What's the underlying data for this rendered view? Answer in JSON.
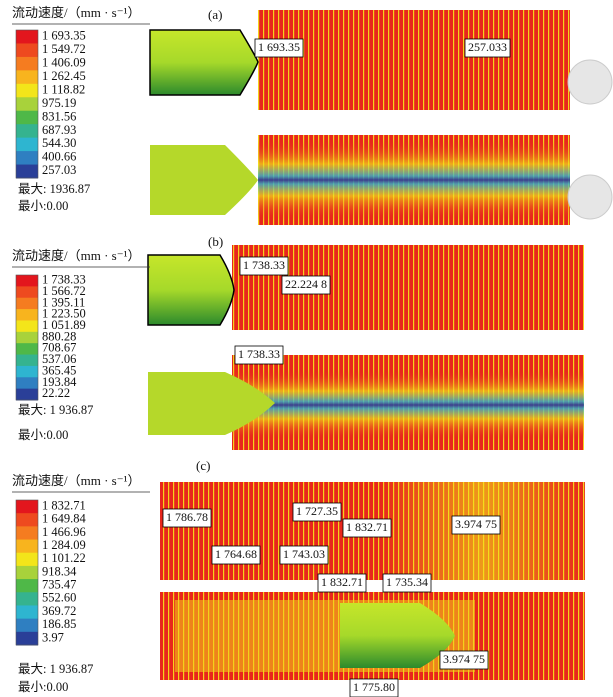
{
  "panels": [
    {
      "label": "(a)",
      "legend_title": "流动速度/（mm · s⁻¹）",
      "legend_values": [
        "1 693.35",
        "1 549.72",
        "1 406.09",
        "1 262.45",
        "1 118.82",
        "975.19",
        "831.56",
        "687.93",
        "544.30",
        "400.66",
        "257.03"
      ],
      "max": "最大: 1936.87",
      "min": "最小:0.00",
      "annotations": [
        "1 693.35",
        "257.033"
      ]
    },
    {
      "label": "(b)",
      "legend_title": "流动速度/（mm · s⁻¹）",
      "legend_values": [
        "1 738.33",
        "1 566.72",
        "1 395.11",
        "1 223.50",
        "1 051.89",
        "880.28",
        "708.67",
        "537.06",
        "365.45",
        "193.84",
        "22.22"
      ],
      "max": "最大: 1 936.87",
      "min": "最小:0.00",
      "annotations": [
        "1 738.33",
        "22.224 8",
        "1 738.33"
      ]
    },
    {
      "label": "(c)",
      "legend_title": "流动速度/（mm · s⁻¹）",
      "legend_values": [
        "1 832.71",
        "1 649.84",
        "1 466.96",
        "1 284.09",
        "1 101.22",
        "918.34",
        "735.47",
        "552.60",
        "369.72",
        "186.85",
        "3.97"
      ],
      "max": "最大: 1 936.87",
      "min": "最小:0.00",
      "annotations": [
        "1 786.78",
        "1 727.35",
        "1 832.71",
        "3.974 75",
        "1 764.68",
        "1 743.03",
        "1 832.71",
        "1 735.34",
        "3.974 75",
        "1 775.80"
      ]
    }
  ]
}
